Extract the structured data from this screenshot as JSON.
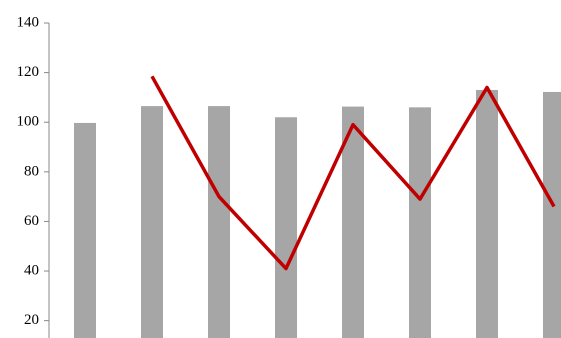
{
  "chart_data": {
    "type": "bar-line",
    "categories": [
      null,
      null,
      null,
      null,
      null,
      null,
      null,
      null
    ],
    "series": [
      {
        "type": "bar",
        "color": "#a6a6a6",
        "values": [
          99.7,
          106.5,
          106.5,
          102,
          106.3,
          106,
          113,
          112.2
        ]
      },
      {
        "type": "line",
        "color": "#c00000",
        "values": [
          null,
          118.5,
          70,
          41,
          99,
          69,
          114,
          66
        ]
      }
    ],
    "ylim": [
      13,
      140
    ],
    "yticks": [
      20,
      40,
      60,
      80,
      100,
      120,
      140
    ]
  }
}
